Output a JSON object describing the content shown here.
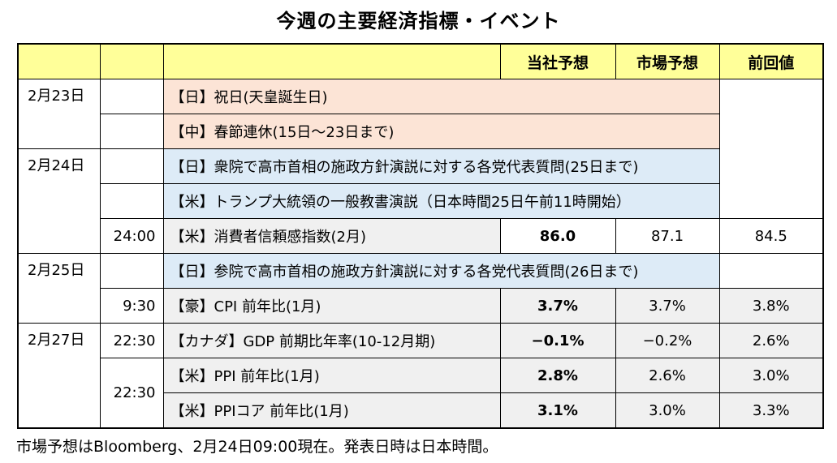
{
  "title": "今週の主要経済指標・イベント",
  "columns": {
    "date": "",
    "time": "",
    "event": "",
    "company_forecast": "当社予想",
    "market_forecast": "市場予想",
    "previous_value": "前回値"
  },
  "rows": [
    {
      "date": "2月23日",
      "time": "",
      "event": "【日】祝日(天皇誕生日)",
      "type": "holiday"
    },
    {
      "date": "",
      "time": "",
      "event": "【中】春節連休(15日～23日まで)",
      "type": "holiday"
    },
    {
      "date": "2月24日",
      "time": "",
      "event": "【日】衆院で高市首相の施政方針演説に対する各党代表質問(25日まで)",
      "type": "event"
    },
    {
      "date": "",
      "time": "",
      "event": "【米】トランプ大統領の一般教書演説（日本時間25日午前11時開始）",
      "type": "event"
    },
    {
      "date": "",
      "time": "24:00",
      "event": "【米】消費者信頼感指数(2月)",
      "company_forecast": "86.0",
      "market_forecast": "87.1",
      "previous_value": "84.5",
      "type": "indicator"
    },
    {
      "date": "2月25日",
      "time": "",
      "event": "【日】参院で高市首相の施政方針演説に対する各党代表質問(26日まで)",
      "type": "event"
    },
    {
      "date": "",
      "time": "9:30",
      "event": "【豪】CPI 前年比(1月)",
      "company_forecast": "3.7%",
      "market_forecast": "3.7%",
      "previous_value": "3.8%",
      "type": "indicator"
    },
    {
      "date": "2月27日",
      "time": "22:30",
      "event": "【カナダ】GDP 前期比年率(10-12月期)",
      "company_forecast": "−0.1%",
      "market_forecast": "−0.2%",
      "previous_value": "2.6%",
      "type": "indicator"
    },
    {
      "date": "",
      "time": "22:30",
      "event": "【米】PPI 前年比(1月)",
      "company_forecast": "2.8%",
      "market_forecast": "2.6%",
      "previous_value": "3.0%",
      "type": "indicator"
    },
    {
      "date": "",
      "time": "",
      "event": "【米】PPIコア 前年比(1月)",
      "company_forecast": "3.1%",
      "market_forecast": "3.0%",
      "previous_value": "3.3%",
      "type": "indicator"
    },
    {
      "_comment_types": "holiday=pink rows, event=blue rows, indicator=gray rows"
    }
  ],
  "footnote": "市場予想はBloomberg、2月24日09:00現在。発表日時は日本時間。",
  "colors": {
    "header_bg": "#ffff99",
    "holiday_bg": "#fce4d6",
    "event_bg": "#ddebf7",
    "indicator_bg": "#f0f0f0",
    "border": "#000000",
    "text": "#000000"
  }
}
